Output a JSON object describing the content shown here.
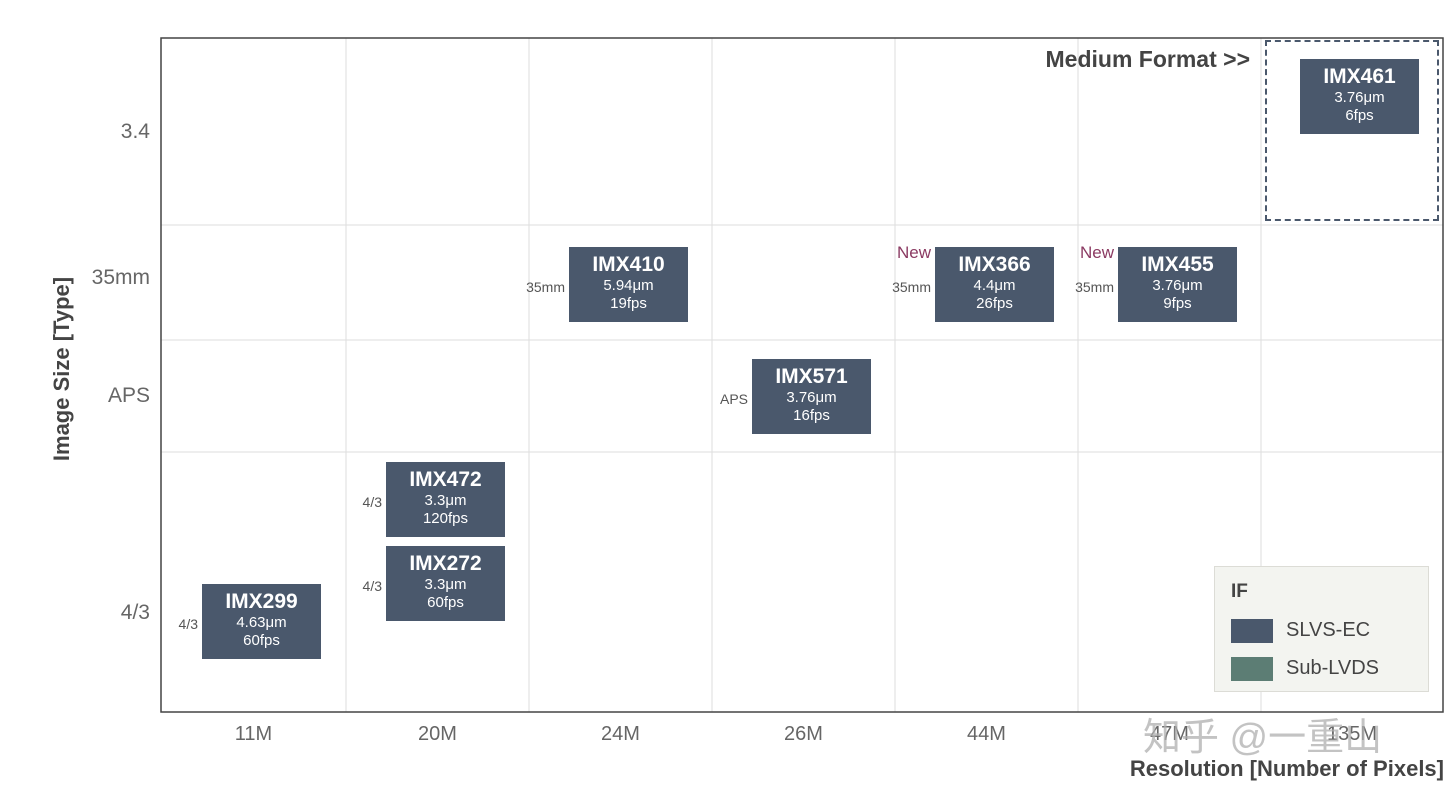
{
  "chart_data": {
    "type": "table",
    "ylabel": "Image Size [Type]",
    "xlabel": "Resolution [Number of Pixels]",
    "x_ticks": [
      "11M",
      "20M",
      "24M",
      "26M",
      "44M",
      "47M",
      "135M"
    ],
    "y_ticks": [
      "3.4",
      "35mm",
      "APS",
      "4/3"
    ],
    "annotation": "Medium Format >>",
    "legend": {
      "title": "IF",
      "items": [
        {
          "label": "SLVS-EC",
          "color": "#4a586c"
        },
        {
          "label": "Sub-LVDS",
          "color": "#5c7d74"
        }
      ],
      "placement": "bottom-right"
    },
    "sensors": [
      {
        "name": "IMX461",
        "pixel": "3.76μm",
        "fps": "6fps",
        "resolution": "135M",
        "size": "3.4",
        "format": "",
        "new": "",
        "interface": "SLVS-EC"
      },
      {
        "name": "IMX410",
        "pixel": "5.94μm",
        "fps": "19fps",
        "resolution": "24M",
        "size": "35mm",
        "format": "35mm",
        "new": "",
        "interface": "SLVS-EC"
      },
      {
        "name": "IMX366",
        "pixel": "4.4μm",
        "fps": "26fps",
        "resolution": "44M",
        "size": "35mm",
        "format": "35mm",
        "new": "New",
        "interface": "SLVS-EC"
      },
      {
        "name": "IMX455",
        "pixel": "3.76μm",
        "fps": "9fps",
        "resolution": "47M",
        "size": "35mm",
        "format": "35mm",
        "new": "New",
        "interface": "SLVS-EC"
      },
      {
        "name": "IMX571",
        "pixel": "3.76μm",
        "fps": "16fps",
        "resolution": "26M",
        "size": "APS",
        "format": "APS",
        "new": "",
        "interface": "SLVS-EC"
      },
      {
        "name": "IMX472",
        "pixel": "3.3μm",
        "fps": "120fps",
        "resolution": "20M",
        "size": "4/3",
        "format": "4/3",
        "new": "",
        "interface": "SLVS-EC"
      },
      {
        "name": "IMX272",
        "pixel": "3.3μm",
        "fps": "60fps",
        "resolution": "20M",
        "size": "4/3",
        "format": "4/3",
        "new": "",
        "interface": "SLVS-EC"
      },
      {
        "name": "IMX299",
        "pixel": "4.63μm",
        "fps": "60fps",
        "resolution": "11M",
        "size": "4/3",
        "format": "4/3",
        "new": "",
        "interface": "SLVS-EC"
      }
    ]
  },
  "watermark": "知乎 @一重山"
}
